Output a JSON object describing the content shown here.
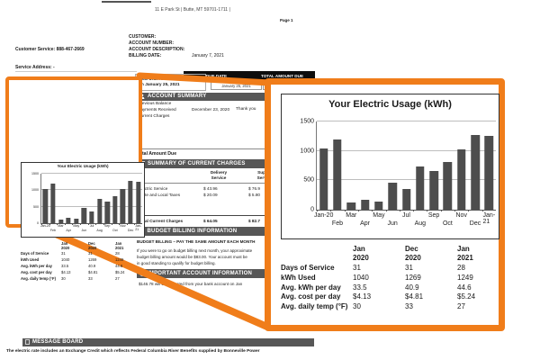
{
  "callout_color": "#F07D1A",
  "page": {
    "address_line": "11 E Park St | Butte, MT 59701-1711 |",
    "page_label": "Page 1"
  },
  "header": {
    "customer_service": "Customer Service: 888-467-2669",
    "field_labels": [
      "CUSTOMER:",
      "ACCOUNT NUMBER:",
      "ACCOUNT DESCRIPTION:",
      "BILLING DATE:"
    ],
    "billing_date_value": "January 7, 2021",
    "service_address": "Service Address: -"
  },
  "bank_draft": {
    "line1": "Bank Draft Amount",
    "line2": "on January 25, 2021"
  },
  "due_bar": {
    "due_date_label": "DUE DATE",
    "total_label": "TOTAL AMOUNT DUE",
    "due_date_value": "January 25, 2021"
  },
  "account_summary": {
    "title": "ACCOUNT SUMMARY",
    "rows": [
      "Previous Balance",
      "Payments Received",
      "Current Charges"
    ],
    "payment_date": "December 23, 2020",
    "thank_you": "Thank you"
  },
  "totals": {
    "total_amount_due_label": "Total Amount Due"
  },
  "current_charges": {
    "title": "SUMMARY OF CURRENT CHARGES",
    "col_delivery": "Delivery\nService",
    "col_supply": "Supply\nService",
    "rows": [
      {
        "label": "Electric Service",
        "delivery": "$  43.96",
        "supply": "$  76.9"
      },
      {
        "label": "State and Local Taxes",
        "delivery": "$  20.09",
        "supply": "$  5.80"
      }
    ],
    "total": {
      "label": "Total Current Charges",
      "delivery": "$  64.05",
      "supply": "$  82.7"
    }
  },
  "budget_billing": {
    "title": "BUDGET BILLING INFORMATION",
    "subhead": "BUDGET BILLING – PAY THE SAME AMOUNT EACH MONTH",
    "lines": [
      "If you were to go on budget billing next month, your approximate",
      "budget billing amount would be $83.00. Your account must be",
      "in good standing to qualify for budget billing."
    ]
  },
  "important_info": {
    "title": "IMPORTANT ACCOUNT INFORMATION",
    "line": "$146.78 will be deducted from your bank account on Jan"
  },
  "message_board": {
    "title": "MESSAGE BOARD",
    "line": "The electric rate includes an Exchange Credit which reflects Federal Columbia River Benefits supplied by Bonneville Power"
  },
  "chart_data": {
    "type": "bar",
    "title": "Your Electric Usage (kWh)",
    "categories": [
      "Jan-20",
      "Feb",
      "Mar",
      "Apr",
      "May",
      "Jun",
      "Jul",
      "Aug",
      "Sep",
      "Oct",
      "Nov",
      "Dec",
      "Jan-21"
    ],
    "values": [
      1040,
      1190,
      120,
      165,
      145,
      460,
      345,
      740,
      655,
      810,
      1030,
      1269,
      1249
    ],
    "ylim": [
      0,
      1500
    ],
    "yticks": [
      0,
      500,
      1000,
      1500
    ],
    "bar_color": "#4d4d4d",
    "grid": true,
    "legend_position": "none"
  },
  "usage_table": {
    "col_headers": [
      {
        "month": "Jan",
        "year": "2020"
      },
      {
        "month": "Dec",
        "year": "2020"
      },
      {
        "month": "Jan",
        "year": "2021"
      }
    ],
    "rows": [
      {
        "label": "Days of Service",
        "values": [
          "31",
          "31",
          "28"
        ]
      },
      {
        "label": "kWh Used",
        "values": [
          "1040",
          "1269",
          "1249"
        ]
      },
      {
        "label": "Avg. kWh per day",
        "values": [
          "33.5",
          "40.9",
          "44.6"
        ]
      },
      {
        "label": "Avg. cost per day",
        "values": [
          "$4.13",
          "$4.81",
          "$5.24"
        ]
      },
      {
        "label": "Avg. daily temp (°F)",
        "values": [
          "30",
          "33",
          "27"
        ]
      }
    ]
  }
}
